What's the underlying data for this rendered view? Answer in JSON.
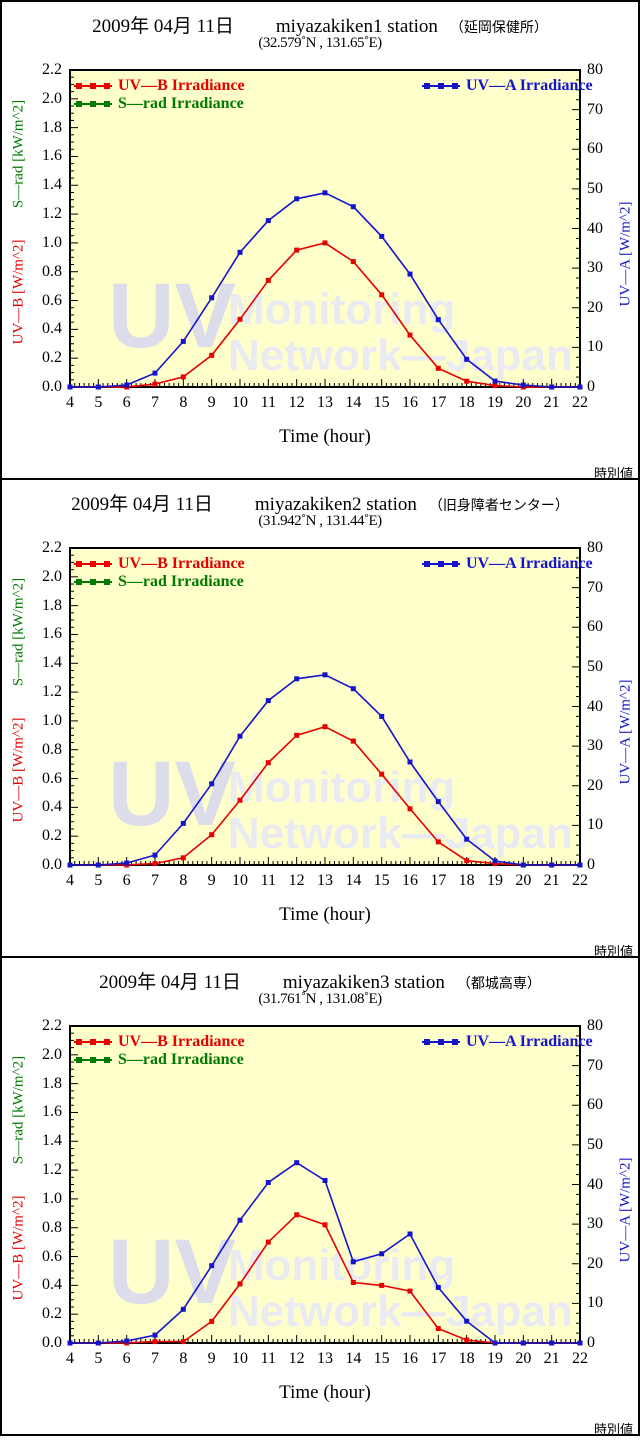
{
  "footer_note": "時別値",
  "watermark": {
    "line1": "UV",
    "line2": "Monitoring",
    "line3": "Network—Japan"
  },
  "colors": {
    "uvb": "#e60000",
    "srad": "#007a00",
    "uva": "#1414cc",
    "plot_bg": "#ffffcc",
    "watermark_strong": "#dcdceb",
    "watermark_light": "#eaeaf3",
    "frame": "#000000"
  },
  "legend": {
    "uvb": "UV—B Irradiance",
    "srad": "S—rad Irradiance",
    "uva": "UV—A Irradiance"
  },
  "axes": {
    "left_ticks": [
      "2.2",
      "2.0",
      "1.8",
      "1.6",
      "1.4",
      "1.2",
      "1.0",
      "0.8",
      "0.6",
      "0.4",
      "0.2",
      "0.0"
    ],
    "right_ticks": [
      "80",
      "70",
      "60",
      "50",
      "40",
      "30",
      "20",
      "10",
      "0"
    ],
    "x_ticks": [
      "4",
      "5",
      "6",
      "7",
      "8",
      "9",
      "10",
      "11",
      "12",
      "13",
      "14",
      "15",
      "16",
      "17",
      "18",
      "19",
      "20",
      "21",
      "22"
    ],
    "xlabel": "Time (hour)",
    "left_label_uvb": "UV—B [W/m^2]",
    "left_label_srad": "S—rad [kW/m^2]",
    "right_label_uva": "UV—A [W/m^2]"
  },
  "panels": [
    {
      "date": "2009年 04月 11日",
      "station": "miyazakiken1 station",
      "station_jp": "（延岡保健所）",
      "coords": "(32.579˚N , 131.65˚E)"
    },
    {
      "date": "2009年 04月 11日",
      "station": "miyazakiken2 station",
      "station_jp": "（旧身障者センター）",
      "coords": "(31.942˚N , 131.44˚E)"
    },
    {
      "date": "2009年 04月 11日",
      "station": "miyazakiken3 station",
      "station_jp": "（都城高専）",
      "coords": "(31.761˚N , 131.08˚E)"
    }
  ],
  "chart_data": [
    {
      "type": "line",
      "title": "2009年 04月 11日 miyazakiken1 station （延岡保健所） (32.579˚N , 131.65˚E)",
      "x": [
        4,
        5,
        6,
        7,
        8,
        9,
        10,
        11,
        12,
        13,
        14,
        15,
        16,
        17,
        18,
        19,
        20,
        21,
        22
      ],
      "xlabel": "Time (hour)",
      "grid": false,
      "legend_position": "top-inside",
      "left_axis": {
        "label": "UV—B [W/m^2] / S—rad [kW/m^2]",
        "range": [
          0,
          2.2
        ]
      },
      "right_axis": {
        "label": "UV—A [W/m^2]",
        "range": [
          0,
          80
        ]
      },
      "series": [
        {
          "name": "UV—B Irradiance",
          "axis": "left",
          "color": "#e60000",
          "values": [
            0,
            0,
            0,
            0.02,
            0.07,
            0.22,
            0.47,
            0.74,
            0.95,
            1.0,
            0.87,
            0.64,
            0.36,
            0.13,
            0.04,
            0.01,
            0,
            0,
            0
          ]
        },
        {
          "name": "S—rad Irradiance",
          "axis": "left",
          "color": "#007a00",
          "values": [],
          "note": "listed in legend but no data plotted"
        },
        {
          "name": "UV—A Irradiance",
          "axis": "right",
          "color": "#1414cc",
          "values": [
            0,
            0,
            0.5,
            3.5,
            11.5,
            22.5,
            34,
            42,
            47.5,
            49,
            45.5,
            38,
            28.5,
            17,
            7,
            1.5,
            0.5,
            0,
            0
          ]
        }
      ]
    },
    {
      "type": "line",
      "title": "2009年 04月 11日 miyazakiken2 station （旧身障者センター） (31.942˚N , 131.44˚E)",
      "x": [
        4,
        5,
        6,
        7,
        8,
        9,
        10,
        11,
        12,
        13,
        14,
        15,
        16,
        17,
        18,
        19,
        20,
        21,
        22
      ],
      "xlabel": "Time (hour)",
      "grid": false,
      "legend_position": "top-inside",
      "left_axis": {
        "label": "UV—B [W/m^2] / S—rad [kW/m^2]",
        "range": [
          0,
          2.2
        ]
      },
      "right_axis": {
        "label": "UV—A [W/m^2]",
        "range": [
          0,
          80
        ]
      },
      "series": [
        {
          "name": "UV—B Irradiance",
          "axis": "left",
          "color": "#e60000",
          "values": [
            0,
            0,
            0,
            0.01,
            0.05,
            0.21,
            0.45,
            0.71,
            0.9,
            0.96,
            0.86,
            0.63,
            0.39,
            0.16,
            0.03,
            0.01,
            0,
            0,
            0
          ]
        },
        {
          "name": "S—rad Irradiance",
          "axis": "left",
          "color": "#007a00",
          "values": [],
          "note": "listed in legend but no data plotted"
        },
        {
          "name": "UV—A Irradiance",
          "axis": "right",
          "color": "#1414cc",
          "values": [
            0,
            0,
            0.5,
            2.5,
            10.5,
            20.5,
            32.5,
            41.5,
            47,
            48,
            44.5,
            37.5,
            26,
            16,
            6.5,
            1,
            0,
            0,
            0
          ]
        }
      ]
    },
    {
      "type": "line",
      "title": "2009年 04月 11日 miyazakiken3 station （都城高専） (31.761˚N , 131.08˚E)",
      "x": [
        4,
        5,
        6,
        7,
        8,
        9,
        10,
        11,
        12,
        13,
        14,
        15,
        16,
        17,
        18,
        19,
        20,
        21,
        22
      ],
      "xlabel": "Time (hour)",
      "grid": false,
      "legend_position": "top-inside",
      "left_axis": {
        "label": "UV—B [W/m^2] / S—rad [kW/m^2]",
        "range": [
          0,
          2.2
        ]
      },
      "right_axis": {
        "label": "UV—A [W/m^2]",
        "range": [
          0,
          80
        ]
      },
      "series": [
        {
          "name": "UV—B Irradiance",
          "axis": "left",
          "color": "#e60000",
          "values": [
            0,
            0,
            0,
            0.01,
            0.01,
            0.15,
            0.41,
            0.7,
            0.89,
            0.82,
            0.42,
            0.4,
            0.36,
            0.1,
            0.02,
            0,
            0,
            0,
            0
          ]
        },
        {
          "name": "S—rad Irradiance",
          "axis": "left",
          "color": "#007a00",
          "values": [],
          "note": "listed in legend but no data plotted"
        },
        {
          "name": "UV—A Irradiance",
          "axis": "right",
          "color": "#1414cc",
          "values": [
            0,
            0,
            0.5,
            2,
            8.5,
            19.5,
            31,
            40.5,
            45.5,
            41,
            20.5,
            22.5,
            27.5,
            14,
            5.5,
            0,
            0,
            0,
            0
          ]
        }
      ]
    }
  ]
}
